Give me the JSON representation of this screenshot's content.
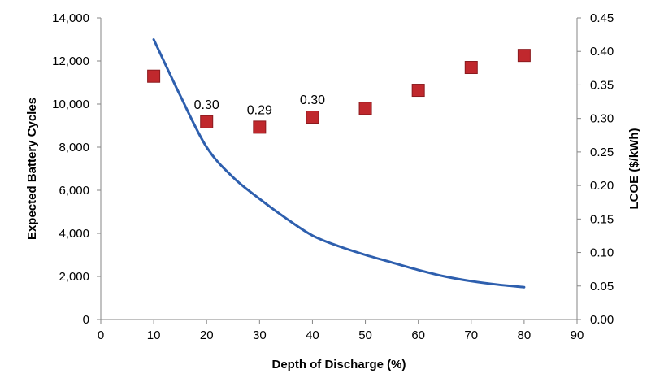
{
  "chart_data": {
    "type": "line",
    "title": "",
    "xlabel": "Depth of Discharge (%)",
    "ylabel": "Expected Battery Cycles",
    "y2label": "LCOE ($/kWh)",
    "xlim": [
      0,
      90
    ],
    "ylim": [
      0,
      14000
    ],
    "y2lim": [
      0,
      0.45
    ],
    "grid": false,
    "x_ticks": [
      0,
      10,
      20,
      30,
      40,
      50,
      60,
      70,
      80,
      90
    ],
    "x_tick_labels": [
      "0",
      "10",
      "20",
      "30",
      "40",
      "50",
      "60",
      "70",
      "80",
      "90"
    ],
    "y_ticks": [
      0,
      2000,
      4000,
      6000,
      8000,
      10000,
      12000,
      14000
    ],
    "y_tick_labels": [
      "0",
      "2,000",
      "4,000",
      "6,000",
      "8,000",
      "10,000",
      "12,000",
      "14,000"
    ],
    "y2_ticks": [
      0,
      0.05,
      0.1,
      0.15,
      0.2,
      0.25,
      0.3,
      0.35,
      0.4,
      0.45
    ],
    "y2_tick_labels": [
      "0.00",
      "0.05",
      "0.10",
      "0.15",
      "0.20",
      "0.25",
      "0.30",
      "0.35",
      "0.40",
      "0.45"
    ],
    "series": [
      {
        "type": "line",
        "axis": "left",
        "color": "#2E5FAE",
        "x": [
          10,
          15,
          20,
          25,
          30,
          35,
          40,
          45,
          50,
          55,
          60,
          65,
          70,
          75,
          80
        ],
        "values": [
          13000,
          10400,
          8000,
          6600,
          5600,
          4700,
          3900,
          3400,
          3000,
          2650,
          2300,
          2000,
          1780,
          1620,
          1500
        ]
      },
      {
        "type": "scatter",
        "axis": "right",
        "color": "#C0282D",
        "x": [
          10,
          20,
          30,
          40,
          50,
          60,
          70,
          80
        ],
        "values": [
          0.363,
          0.295,
          0.287,
          0.302,
          0.315,
          0.342,
          0.376,
          0.394
        ]
      }
    ],
    "annotations": [
      {
        "x": 20,
        "y2": 0.295,
        "text": "0.30"
      },
      {
        "x": 30,
        "y2": 0.287,
        "text": "0.29"
      },
      {
        "x": 40,
        "y2": 0.302,
        "text": "0.30"
      }
    ]
  }
}
